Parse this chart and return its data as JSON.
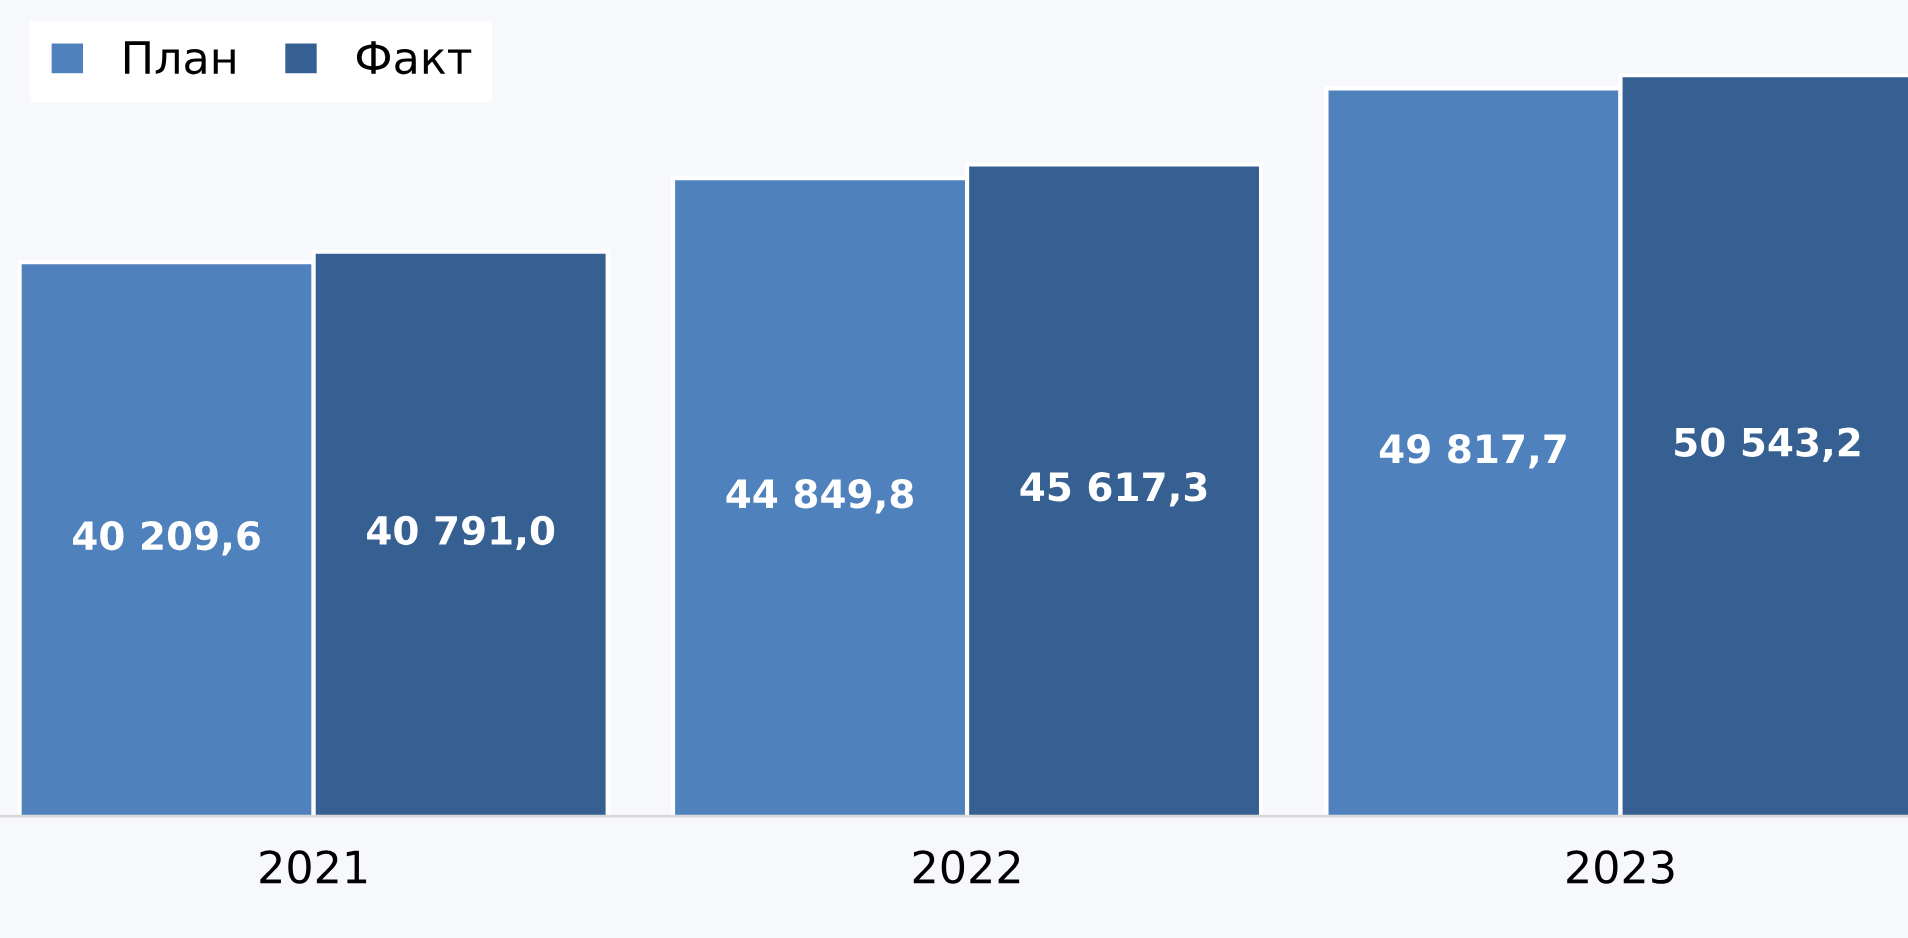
{
  "chart_data": {
    "type": "bar",
    "categories": [
      "2021",
      "2022",
      "2023"
    ],
    "series": [
      {
        "name": "План",
        "color": "#4f81bd",
        "values": [
          40209.6,
          44849.8,
          49817.7
        ],
        "value_labels": [
          "40 209,6",
          "44 849,8",
          "49 817,7"
        ]
      },
      {
        "name": "Факт",
        "color": "#376092",
        "values": [
          40791.0,
          45617.3,
          50543.2
        ],
        "value_labels": [
          "40 791,0",
          "45 617,3",
          "50 543,2"
        ]
      }
    ],
    "ylim": [
      9600,
      54700
    ],
    "tick_labels": "x",
    "legend": "top left",
    "grid": false
  }
}
